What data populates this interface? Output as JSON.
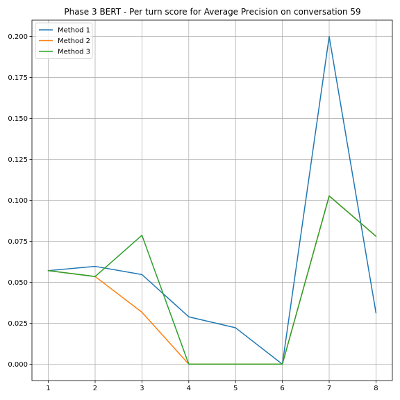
{
  "chart_data": {
    "type": "line",
    "title": "Phase 3 BERT - Per turn score for Average Precision on conversation 59",
    "xlabel": "",
    "ylabel": "",
    "x": [
      1,
      2,
      3,
      4,
      5,
      6,
      7,
      8
    ],
    "xticks": [
      "1",
      "2",
      "3",
      "4",
      "5",
      "6",
      "7",
      "8"
    ],
    "xlim": [
      0.65,
      8.35
    ],
    "yticks": [
      "0.000",
      "0.025",
      "0.050",
      "0.075",
      "0.100",
      "0.125",
      "0.150",
      "0.175",
      "0.200"
    ],
    "ytick_values": [
      0,
      0.025,
      0.05,
      0.075,
      0.1,
      0.125,
      0.15,
      0.175,
      0.2
    ],
    "ylim": [
      -0.01,
      0.21
    ],
    "grid": true,
    "legend_position": "upper left",
    "series": [
      {
        "name": "Method 1",
        "color": "#1f77b4",
        "values": [
          0.0571,
          0.0597,
          0.0547,
          0.0289,
          0.0222,
          0.0,
          0.2,
          0.0313
        ]
      },
      {
        "name": "Method 2",
        "color": "#ff7f0e",
        "values": [
          0.0571,
          0.0535,
          0.0317,
          0.0,
          0.0,
          0.0,
          0.1027,
          0.0781
        ]
      },
      {
        "name": "Method 3",
        "color": "#2ca02c",
        "values": [
          0.0571,
          0.0535,
          0.0787,
          0.0,
          0.0,
          0.0,
          0.1027,
          0.0781
        ]
      }
    ]
  }
}
